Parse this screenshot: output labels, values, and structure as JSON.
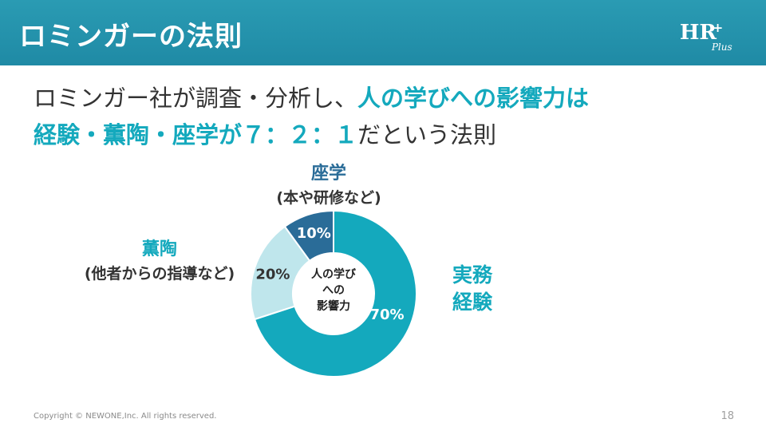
{
  "header": {
    "title": "ロミンガーの法則",
    "logo_main": "HR",
    "logo_plus": "+",
    "logo_sub": "Plus",
    "background_color": "#2a9bb3"
  },
  "lead": {
    "part1": "ロミンガー社が調査・分析し、",
    "part2_accent": "人の学びへの影響力は",
    "part3_accent": "経験・薫陶・座学が７：２：１",
    "part4": "だという法則"
  },
  "chart_data": {
    "type": "pie",
    "center_label": [
      "人の学び",
      "への",
      "影響力"
    ],
    "slices": [
      {
        "name": "座学",
        "sub": "(本や研修など)",
        "value": 10,
        "label": "10%",
        "color": "#2a6c98"
      },
      {
        "name": "薫陶",
        "sub": "(他者からの指導など)",
        "value": 20,
        "label": "20%",
        "color": "#bfe6ec"
      },
      {
        "name": "実務経験",
        "sub": "",
        "value": 70,
        "label": "70%",
        "color": "#14a9bd"
      }
    ]
  },
  "categories": {
    "zagaku": {
      "name": "座学",
      "sub": "(本や研修など)"
    },
    "kuntou": {
      "name": "薫陶",
      "sub": "(他者からの指導など)"
    },
    "jitsumu": {
      "line1": "実務",
      "line2": "経験"
    }
  },
  "footer": {
    "copyright": "Copyright © NEWONE,Inc. All rights reserved.",
    "page_number": "18"
  }
}
